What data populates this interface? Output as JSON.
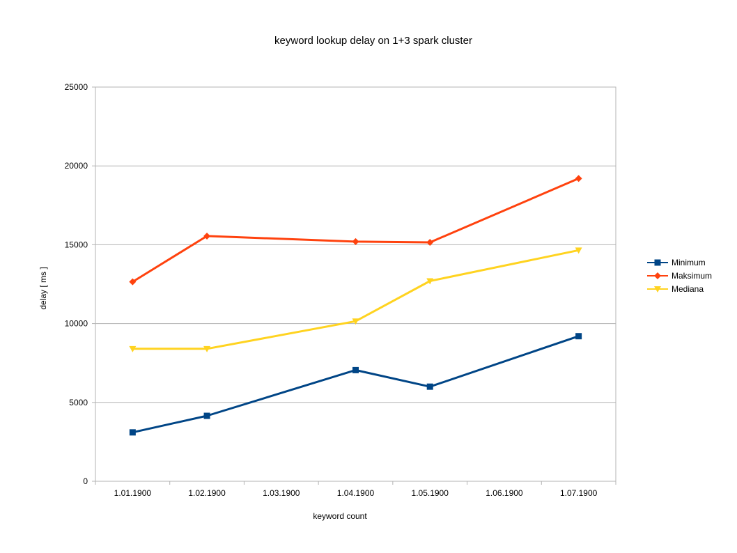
{
  "chart_data": {
    "type": "line",
    "title": "keyword lookup delay on 1+3 spark cluster",
    "xlabel": "keyword count",
    "ylabel": "delay [ ms ]",
    "categories": [
      "1.01.1900",
      "1.02.1900",
      "1.03.1900",
      "1.04.1900",
      "1.05.1900",
      "1.06.1900",
      "1.07.1900"
    ],
    "ylim": [
      0,
      25000
    ],
    "yticks": [
      "0",
      "5000",
      "10000",
      "15000",
      "20000",
      "25000"
    ],
    "grid": true,
    "legend": "right",
    "series": [
      {
        "name": "Minimum",
        "color": "#004586",
        "marker": "square",
        "values": [
          3100,
          4150,
          null,
          7050,
          6000,
          null,
          9200
        ]
      },
      {
        "name": "Maksimum",
        "color": "#ff420e",
        "marker": "diamond",
        "values": [
          12650,
          15550,
          null,
          15200,
          15150,
          null,
          19200
        ]
      },
      {
        "name": "Mediana",
        "color": "#ffd320",
        "marker": "triangle-down",
        "values": [
          8400,
          8400,
          null,
          10150,
          12700,
          null,
          14650
        ]
      }
    ]
  }
}
